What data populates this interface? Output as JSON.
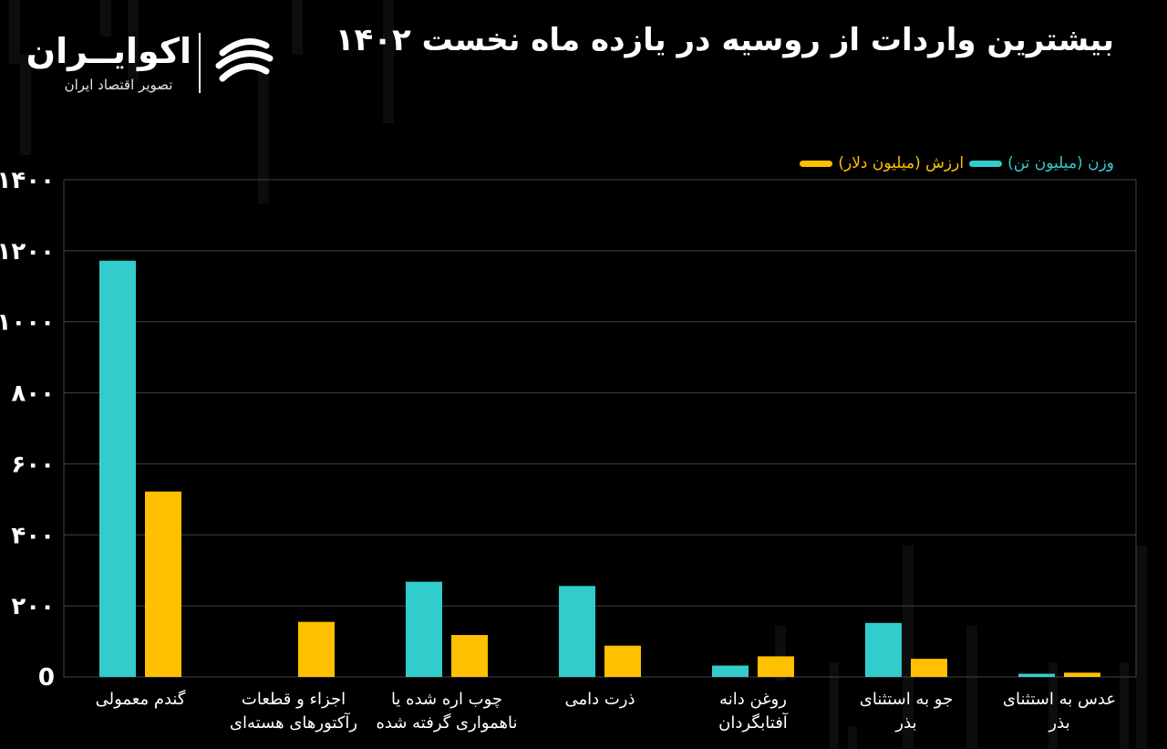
{
  "title": "بیشترین واردات از روسیه در یازده ماه نخست ۱۴۰۲",
  "logo": {
    "name": "اکوایــران",
    "tagline": "تصویر اقتصاد ایران"
  },
  "colors": {
    "background": "#000000",
    "weight": "#33cccc",
    "value": "#ffc000",
    "grid": "#444444",
    "text": "#ffffff"
  },
  "chart_data": {
    "type": "bar",
    "title": "بیشترین واردات از روسیه در یازده ماه نخست ۱۴۰۲",
    "categories": [
      [
        "گندم معمولی"
      ],
      [
        "اجزاء و قطعات",
        "رآکتورهای هسته‌ای"
      ],
      [
        "چوب اره شده یا",
        "ناهمواری گرفته شده"
      ],
      [
        "ذرت دامی"
      ],
      [
        "روغن دانه",
        "آفتابگردان"
      ],
      [
        "جو به استثنای",
        "بذر"
      ],
      [
        "عدس به استثنای",
        "بذر"
      ]
    ],
    "series": [
      {
        "name": "وزن (میلیون تن)",
        "color": "#33cccc",
        "values": [
          1172,
          0,
          268,
          256,
          32,
          152,
          9
        ]
      },
      {
        "name": "ارزش (میلیون دلار)",
        "color": "#ffc000",
        "values": [
          522,
          155,
          118,
          88,
          58,
          51,
          12
        ]
      }
    ],
    "ylim": [
      0,
      1400
    ],
    "yticks": [
      "0",
      "۲۰۰",
      "۴۰۰",
      "۶۰۰",
      "۸۰۰",
      "۱۰۰۰",
      "۱۲۰۰",
      "۱۴۰۰"
    ],
    "ytick_values": [
      0,
      200,
      400,
      600,
      800,
      1000,
      1200,
      1400
    ],
    "grid": true,
    "legend": "top-right",
    "xlabel": "",
    "ylabel": ""
  }
}
